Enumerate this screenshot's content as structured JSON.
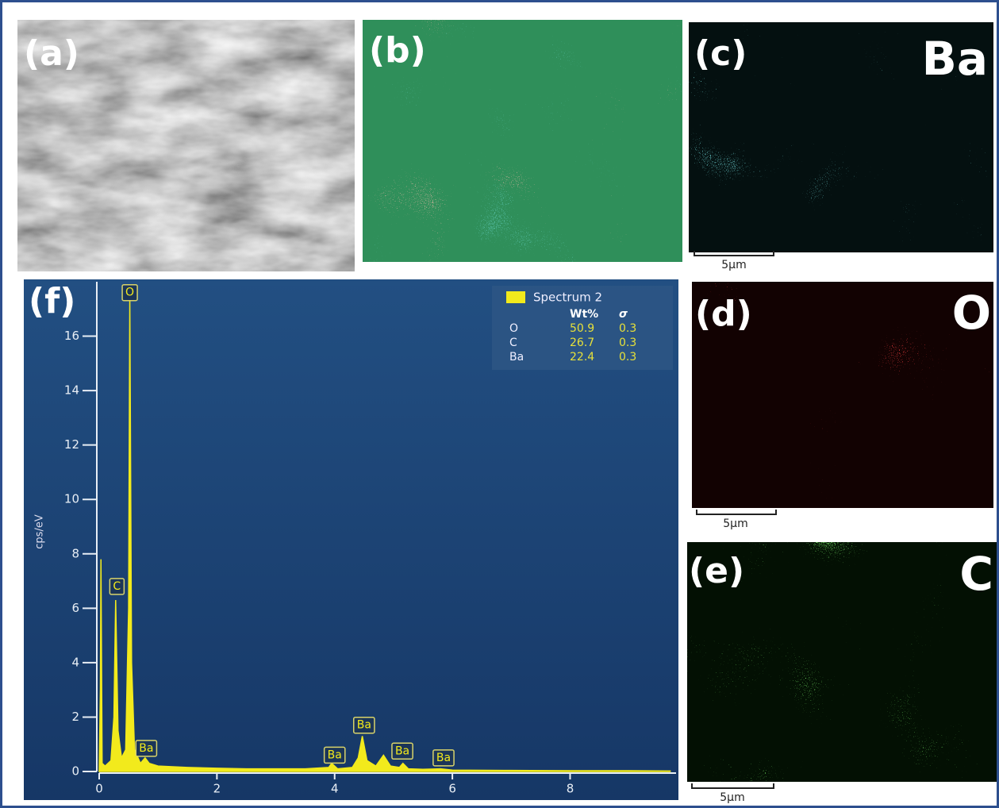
{
  "panels": [
    {
      "label": "(a)"
    },
    {
      "label": "(b)"
    },
    {
      "label": "(c)",
      "element": "Ba",
      "scale": "5μm"
    },
    {
      "label": "(d)",
      "element": "O",
      "scale": "5μm"
    },
    {
      "label": "(e)",
      "element": "C",
      "scale": "5μm"
    }
  ],
  "chart_data": {
    "type": "area",
    "label": "(f)",
    "y_label": "cps/eV",
    "x": [
      0,
      0.02,
      0.03,
      0.05,
      0.1,
      0.2,
      0.25,
      0.28,
      0.32,
      0.38,
      0.45,
      0.5,
      0.52,
      0.55,
      0.6,
      0.7,
      0.78,
      0.85,
      1.0,
      1.5,
      2.0,
      2.5,
      3.0,
      3.5,
      3.9,
      3.95,
      4.05,
      4.3,
      4.4,
      4.47,
      4.55,
      4.7,
      4.83,
      4.95,
      5.1,
      5.16,
      5.25,
      5.5,
      5.8,
      6.0,
      7.0,
      8.0,
      9.0,
      9.7
    ],
    "series": [
      {
        "name": "Spectrum 2",
        "color": "#f2ea1c",
        "values": [
          0,
          3,
          7.8,
          0.3,
          0.2,
          0.4,
          2,
          6.3,
          1.5,
          0.5,
          0.8,
          6,
          17.4,
          4,
          0.8,
          0.3,
          0.5,
          0.3,
          0.2,
          0.15,
          0.12,
          0.1,
          0.1,
          0.1,
          0.15,
          0.3,
          0.1,
          0.15,
          0.5,
          1.3,
          0.4,
          0.2,
          0.6,
          0.2,
          0.15,
          0.3,
          0.1,
          0.08,
          0.1,
          0.05,
          0.04,
          0.03,
          0.03,
          0.02
        ]
      }
    ],
    "xlim": [
      0,
      9.8
    ],
    "xticks": [
      0,
      2,
      4,
      6,
      8
    ],
    "ylim": [
      0,
      18
    ],
    "yticks": [
      0,
      2,
      4,
      6,
      8,
      10,
      12,
      14,
      16
    ],
    "annotations": [
      {
        "text": "O",
        "x": 0.52,
        "y": 17.6
      },
      {
        "text": "C",
        "x": 0.3,
        "y": 6.8
      },
      {
        "text": "Ba",
        "x": 0.8,
        "y": 0.85
      },
      {
        "text": "Ba",
        "x": 4.0,
        "y": 0.6
      },
      {
        "text": "Ba",
        "x": 4.5,
        "y": 1.7
      },
      {
        "text": "Ba",
        "x": 5.15,
        "y": 0.75
      },
      {
        "text": "Ba",
        "x": 5.85,
        "y": 0.5
      }
    ],
    "composition": {
      "headers": [
        "Wt%",
        "σ"
      ],
      "rows": [
        [
          "O",
          50.9,
          0.3
        ],
        [
          "C",
          26.7,
          0.3
        ],
        [
          "Ba",
          22.4,
          0.3
        ]
      ]
    }
  }
}
